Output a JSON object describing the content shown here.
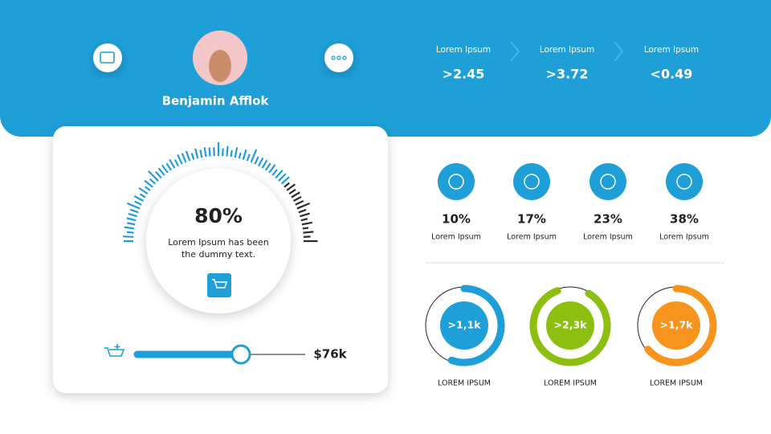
{
  "profile": {
    "name": "Benjamin Afflok"
  },
  "stats": [
    {
      "label": "Lorem Ipsum",
      "value": ">2.45"
    },
    {
      "label": "Lorem Ipsum",
      "value": ">3.72"
    },
    {
      "label": "Lorem Ipsum",
      "value": "<0.49"
    }
  ],
  "gauge": {
    "value": "80%",
    "text": "Lorem Ipsum has been the dummy text."
  },
  "price": "$76k",
  "metrics": [
    {
      "value": "10%",
      "label": "Lorem Ipsum"
    },
    {
      "value": "17%",
      "label": "Lorem Ipsum"
    },
    {
      "value": "23%",
      "label": "Lorem Ipsum"
    },
    {
      "value": "38%",
      "label": "Lorem Ipsum"
    }
  ],
  "rings": [
    {
      "value": ">1,1k",
      "label": "LOREM IPSUM"
    },
    {
      "value": ">2,3k",
      "label": "LOREM IPSUM"
    },
    {
      "value": ">1,7k",
      "label": "LOREM IPSUM"
    }
  ]
}
